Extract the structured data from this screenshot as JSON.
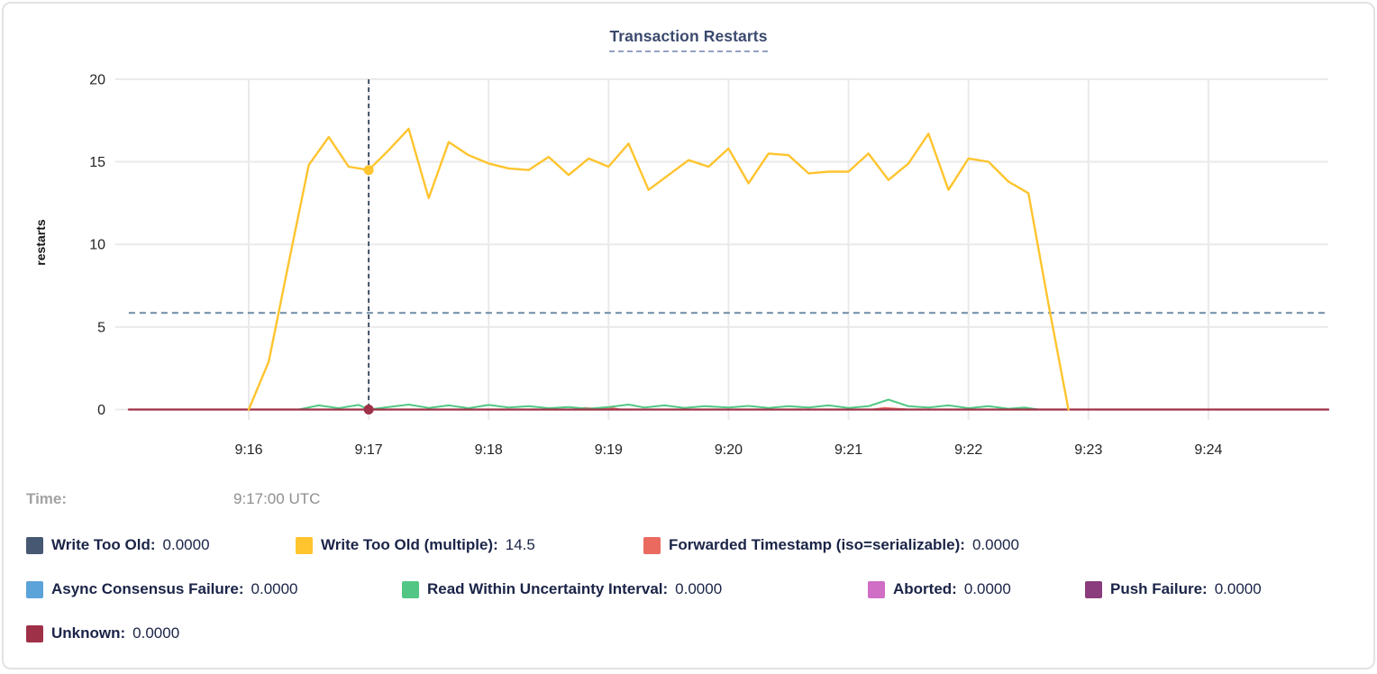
{
  "time_row": {
    "label": "Time:",
    "value": "9:17:00 UTC"
  },
  "legend": {
    "items": [
      {
        "label": "Write Too Old:",
        "value": "0.0000",
        "color": "#475872"
      },
      {
        "label": "Write Too Old (multiple):",
        "value": "14.5",
        "color": "#ffc42e"
      },
      {
        "label": "Forwarded Timestamp (iso=serializable):",
        "value": "0.0000",
        "color": "#ea6a5f"
      },
      {
        "label": "Async Consensus Failure:",
        "value": "0.0000",
        "color": "#5ba3d9"
      },
      {
        "label": "Read Within Uncertainty Interval:",
        "value": "0.0000",
        "color": "#52c785"
      },
      {
        "label": "Aborted:",
        "value": "0.0000",
        "color": "#d06dc5"
      },
      {
        "label": "Push Failure:",
        "value": "0.0000",
        "color": "#8a3c7c"
      },
      {
        "label": "Unknown:",
        "value": "0.0000",
        "color": "#9e3048"
      }
    ]
  },
  "chart_data": {
    "type": "line",
    "title": "Transaction Restarts",
    "xlabel": "",
    "ylabel": "restarts",
    "ylim": [
      0,
      20
    ],
    "y_ticks": [
      0,
      5,
      10,
      15,
      20
    ],
    "x_domain": {
      "start": "9:15:00",
      "end": "9:25:00",
      "seconds": 600
    },
    "x_ticks": [
      {
        "t": 60,
        "label": "9:16"
      },
      {
        "t": 120,
        "label": "9:17"
      },
      {
        "t": 180,
        "label": "9:18"
      },
      {
        "t": 240,
        "label": "9:19"
      },
      {
        "t": 300,
        "label": "9:20"
      },
      {
        "t": 360,
        "label": "9:21"
      },
      {
        "t": 420,
        "label": "9:22"
      },
      {
        "t": 480,
        "label": "9:23"
      },
      {
        "t": 540,
        "label": "9:24"
      }
    ],
    "grid": true,
    "legend_position": "bottom",
    "average_line_value": 5.85,
    "cursor": {
      "t": 120,
      "time_label": "9:17:00 UTC",
      "highlight_series": "Write Too Old (multiple)",
      "highlight_value": 14.5
    },
    "series": [
      {
        "name": "Write Too Old",
        "color": "#475872",
        "width": 2,
        "points": [
          [
            0,
            0
          ],
          [
            600,
            0
          ]
        ]
      },
      {
        "name": "Forwarded Timestamp (iso=serializable)",
        "color": "#ea6a5f",
        "width": 2,
        "points": [
          [
            0,
            0
          ],
          [
            222,
            0
          ],
          [
            228,
            0.1
          ],
          [
            234,
            0.04
          ],
          [
            240,
            0.12
          ],
          [
            246,
            0
          ],
          [
            372,
            0
          ],
          [
            378,
            0.1
          ],
          [
            384,
            0.05
          ],
          [
            390,
            0
          ],
          [
            600,
            0
          ]
        ]
      },
      {
        "name": "Async Consensus Failure",
        "color": "#5ba3d9",
        "width": 2,
        "points": [
          [
            0,
            0
          ],
          [
            600,
            0
          ]
        ]
      },
      {
        "name": "Aborted",
        "color": "#d06dc5",
        "width": 2,
        "points": [
          [
            0,
            0
          ],
          [
            600,
            0
          ]
        ]
      },
      {
        "name": "Push Failure",
        "color": "#8a3c7c",
        "width": 2,
        "points": [
          [
            0,
            0
          ],
          [
            600,
            0
          ]
        ]
      },
      {
        "name": "Read Within Uncertainty Interval",
        "color": "#52c785",
        "width": 2,
        "points": [
          [
            85,
            0
          ],
          [
            95,
            0.25
          ],
          [
            105,
            0.08
          ],
          [
            115,
            0.28
          ],
          [
            120,
            0
          ],
          [
            128,
            0.12
          ],
          [
            140,
            0.3
          ],
          [
            150,
            0.1
          ],
          [
            160,
            0.25
          ],
          [
            170,
            0.08
          ],
          [
            180,
            0.28
          ],
          [
            190,
            0.12
          ],
          [
            200,
            0.2
          ],
          [
            210,
            0.08
          ],
          [
            220,
            0.15
          ],
          [
            230,
            0.05
          ],
          [
            240,
            0.15
          ],
          [
            250,
            0.3
          ],
          [
            258,
            0.12
          ],
          [
            268,
            0.25
          ],
          [
            278,
            0.1
          ],
          [
            288,
            0.2
          ],
          [
            300,
            0.12
          ],
          [
            310,
            0.22
          ],
          [
            320,
            0.1
          ],
          [
            330,
            0.2
          ],
          [
            340,
            0.12
          ],
          [
            350,
            0.25
          ],
          [
            360,
            0.1
          ],
          [
            370,
            0.2
          ],
          [
            380,
            0.6
          ],
          [
            390,
            0.2
          ],
          [
            400,
            0.12
          ],
          [
            410,
            0.25
          ],
          [
            420,
            0.08
          ],
          [
            430,
            0.2
          ],
          [
            440,
            0.05
          ],
          [
            448,
            0.12
          ],
          [
            455,
            0
          ]
        ]
      },
      {
        "name": "Unknown",
        "color": "#9e3048",
        "width": 2.2,
        "points": [
          [
            0,
            0
          ],
          [
            600,
            0
          ]
        ]
      },
      {
        "name": "Write Too Old (multiple)",
        "color": "#ffc42e",
        "width": 2.4,
        "points": [
          [
            60,
            0
          ],
          [
            70,
            2.9
          ],
          [
            80,
            8.9
          ],
          [
            90,
            14.8
          ],
          [
            100,
            16.5
          ],
          [
            110,
            14.7
          ],
          [
            120,
            14.5
          ],
          [
            130,
            15.7
          ],
          [
            140,
            17.0
          ],
          [
            150,
            12.8
          ],
          [
            160,
            16.2
          ],
          [
            170,
            15.4
          ],
          [
            180,
            14.9
          ],
          [
            190,
            14.6
          ],
          [
            200,
            14.5
          ],
          [
            210,
            15.3
          ],
          [
            220,
            14.2
          ],
          [
            230,
            15.2
          ],
          [
            240,
            14.7
          ],
          [
            250,
            16.1
          ],
          [
            260,
            13.3
          ],
          [
            270,
            14.2
          ],
          [
            280,
            15.1
          ],
          [
            290,
            14.7
          ],
          [
            300,
            15.8
          ],
          [
            310,
            13.7
          ],
          [
            320,
            15.5
          ],
          [
            330,
            15.4
          ],
          [
            340,
            14.3
          ],
          [
            350,
            14.4
          ],
          [
            360,
            14.4
          ],
          [
            370,
            15.5
          ],
          [
            380,
            13.9
          ],
          [
            390,
            14.9
          ],
          [
            400,
            16.7
          ],
          [
            410,
            13.3
          ],
          [
            420,
            15.2
          ],
          [
            430,
            15.0
          ],
          [
            440,
            13.8
          ],
          [
            450,
            13.1
          ],
          [
            460,
            6.4
          ],
          [
            470,
            0
          ]
        ]
      }
    ],
    "style": {
      "gridline_color": "#eaeaea",
      "tick_text_color": "#242424",
      "avg_line_color": "#6e8ca6",
      "cursor_line_color": "#33475e"
    }
  }
}
